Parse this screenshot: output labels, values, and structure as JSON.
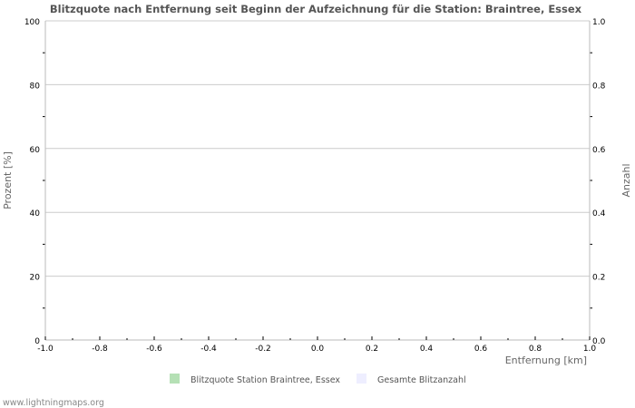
{
  "chart_data": {
    "type": "bar",
    "title": "Blitzquote nach Entfernung seit Beginn der Aufzeichnung für die Station: Braintree, Essex",
    "xlabel": "Entfernung   [km]",
    "ylabel": "Prozent   [%]",
    "y2label": "Anzahl",
    "xlim": [
      -1.0,
      1.0
    ],
    "ylim": [
      0,
      100
    ],
    "y2lim": [
      0.0,
      1.0
    ],
    "x_ticks": [
      "-1.0",
      "-0.8",
      "-0.6",
      "-0.4",
      "-0.2",
      "0.0",
      "0.2",
      "0.4",
      "0.6",
      "0.8",
      "1.0"
    ],
    "y_ticks": [
      "0",
      "20",
      "40",
      "60",
      "80",
      "100"
    ],
    "y2_ticks": [
      "0.0",
      "0.2",
      "0.4",
      "0.6",
      "0.8",
      "1.0"
    ],
    "grid": true,
    "legend_placement": "bottom",
    "series": [
      {
        "name": "Blitzquote Station Braintree, Essex",
        "color": "#b5e0b5",
        "values": []
      },
      {
        "name": "Gesamte Blitzanzahl",
        "color": "#eeeeff",
        "values": []
      }
    ]
  },
  "footer": "www.lightningmaps.org"
}
